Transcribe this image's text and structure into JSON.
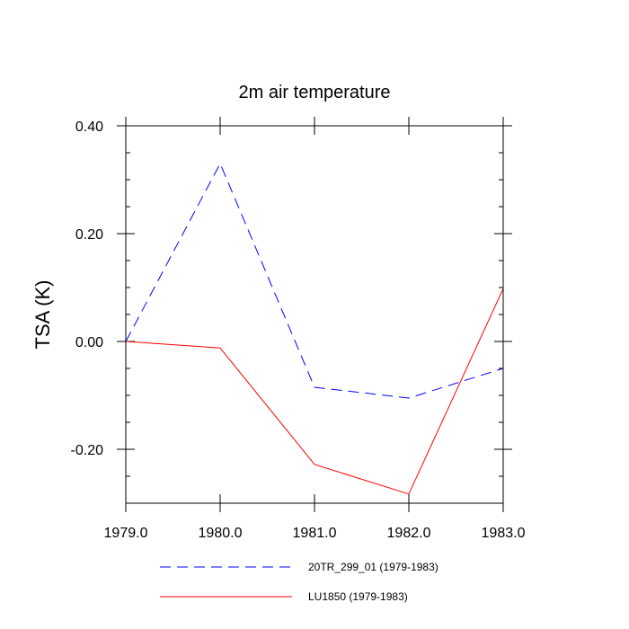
{
  "chart_data": {
    "type": "line",
    "title": "2m air temperature",
    "xlabel": "",
    "ylabel": "TSA  (K)",
    "xlim": [
      1979,
      1983
    ],
    "ylim": [
      -0.3,
      0.4
    ],
    "x_ticks": [
      1979,
      1980,
      1981,
      1982,
      1983
    ],
    "x_tick_labels": [
      "1979.0",
      "1980.0",
      "1981.0",
      "1982.0",
      "1983.0"
    ],
    "y_ticks": [
      0.4,
      0.2,
      0.0,
      -0.2
    ],
    "y_tick_labels": [
      "0.40",
      "0.20",
      "0.00",
      "-0.20"
    ],
    "grid": false,
    "legend_position": "bottom",
    "x": [
      1979,
      1980,
      1981,
      1982,
      1983
    ],
    "series": [
      {
        "name": "20TR_299_01 (1979-1983)",
        "values": [
          0.0,
          0.33,
          -0.085,
          -0.105,
          -0.05
        ],
        "color": "#0000ff",
        "style": "dashed"
      },
      {
        "name": "LU1850 (1979-1983)",
        "values": [
          0.0,
          -0.012,
          -0.228,
          -0.283,
          0.098
        ],
        "color": "#ff0000",
        "style": "solid"
      }
    ]
  }
}
